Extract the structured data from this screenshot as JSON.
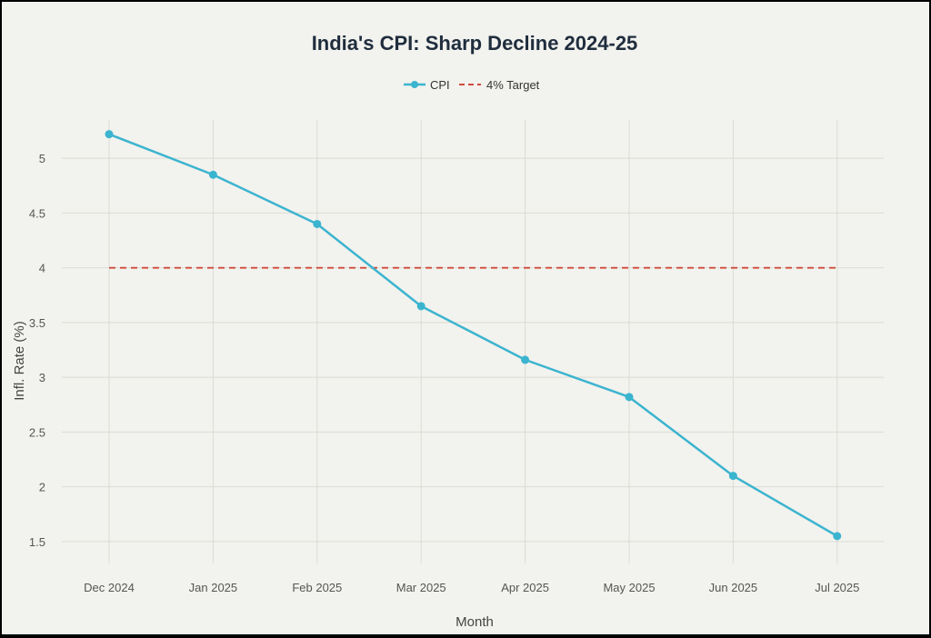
{
  "chart_data": {
    "type": "line",
    "title": "India's CPI: Sharp Decline 2024-25",
    "xlabel": "Month",
    "ylabel": "Infl. Rate (%)",
    "categories": [
      "Dec 2024",
      "Jan 2025",
      "Feb 2025",
      "Mar 2025",
      "Apr 2025",
      "May 2025",
      "Jun 2025",
      "Jul 2025"
    ],
    "series": [
      {
        "name": "CPI",
        "values": [
          5.22,
          4.85,
          4.4,
          3.65,
          3.16,
          2.82,
          2.1,
          1.55
        ],
        "color": "#3bb4cf"
      },
      {
        "name": "4% Target",
        "values": [
          4,
          4,
          4,
          4,
          4,
          4,
          4,
          4
        ],
        "color": "#d04b3c",
        "style": "dashed"
      }
    ],
    "yticks": [
      "1.5",
      "2",
      "2.5",
      "3",
      "3.5",
      "4",
      "4.5",
      "5"
    ],
    "ylim": [
      1.3,
      5.35
    ],
    "grid": true,
    "legend": "top-center"
  }
}
